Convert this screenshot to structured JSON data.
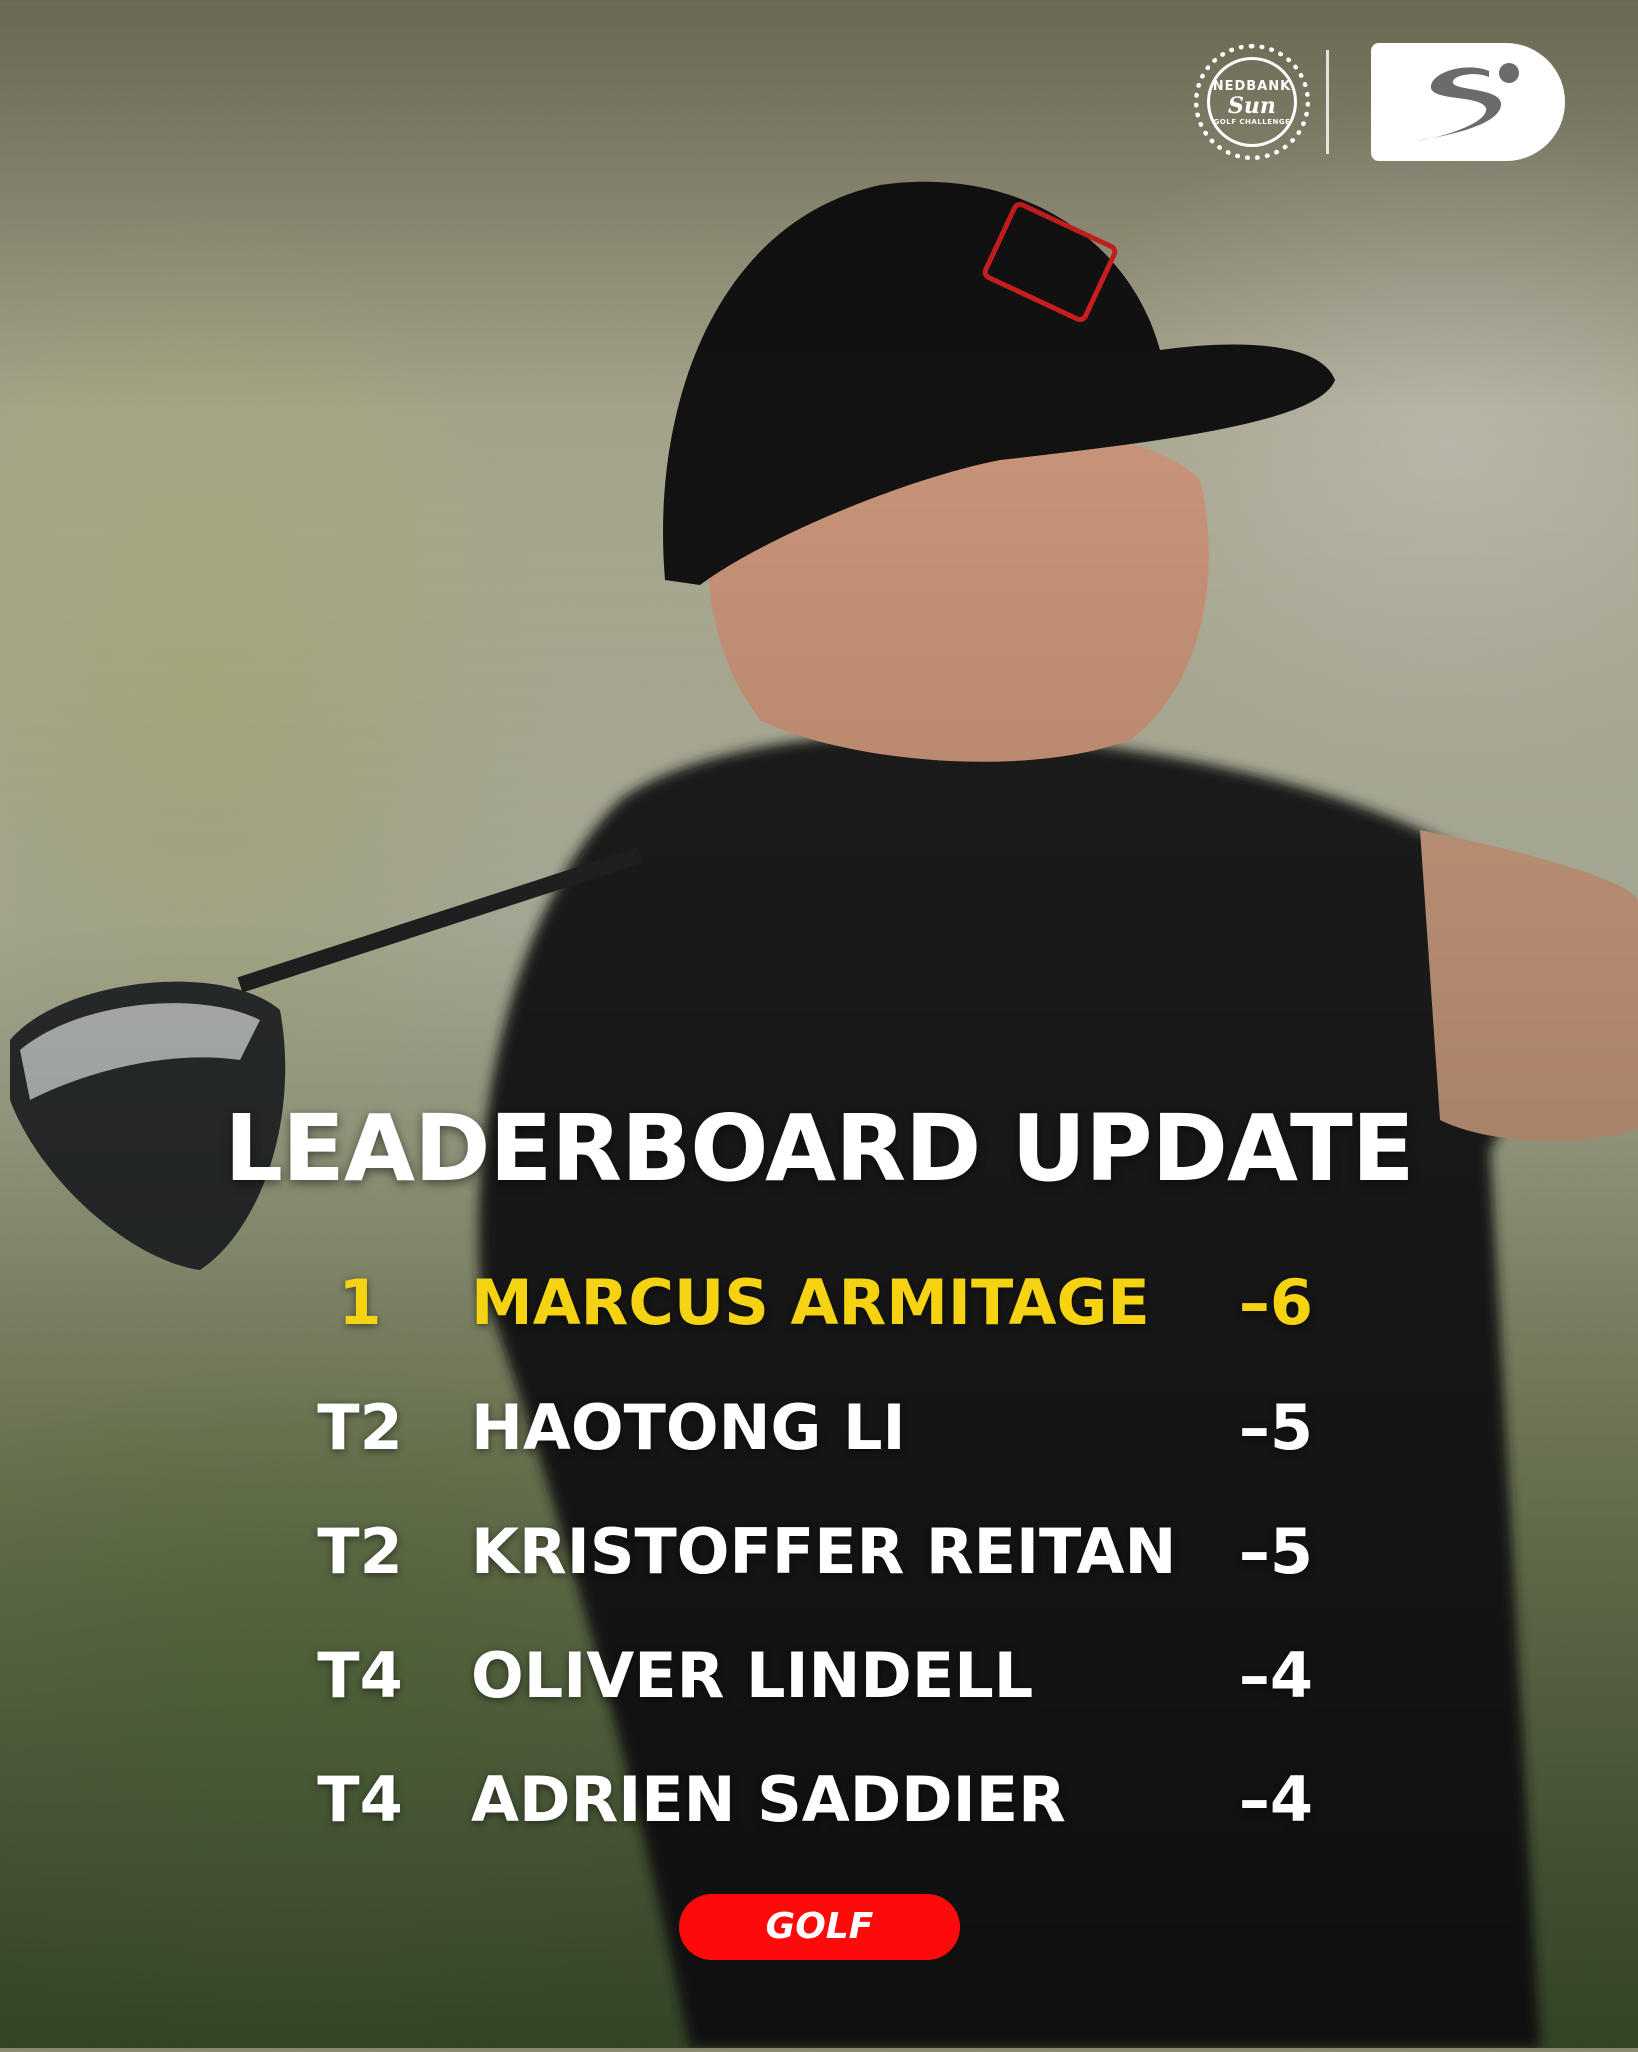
{
  "header": {
    "sponsor_logo": {
      "line1": "NEDBANK",
      "script": "Sun",
      "line2": "GOLF CHALLENGE"
    },
    "broadcaster_logo": "supersport-dstv-logo"
  },
  "title": "LEADERBOARD UPDATE",
  "leaderboard": [
    {
      "position": "1",
      "name": "MARCUS ARMITAGE",
      "score": "–6"
    },
    {
      "position": "T2",
      "name": "HAOTONG LI",
      "score": "–5"
    },
    {
      "position": "T2",
      "name": "KRISTOFFER REITAN",
      "score": "–5"
    },
    {
      "position": "T4",
      "name": "OLIVER LINDELL",
      "score": "–4"
    },
    {
      "position": "T4",
      "name": "ADRIEN SADDIER",
      "score": "–4"
    }
  ],
  "tag": "GOLF",
  "colors": {
    "leader": "#f5d312",
    "tag_bg": "#ff0a0a",
    "text": "#ffffff"
  }
}
